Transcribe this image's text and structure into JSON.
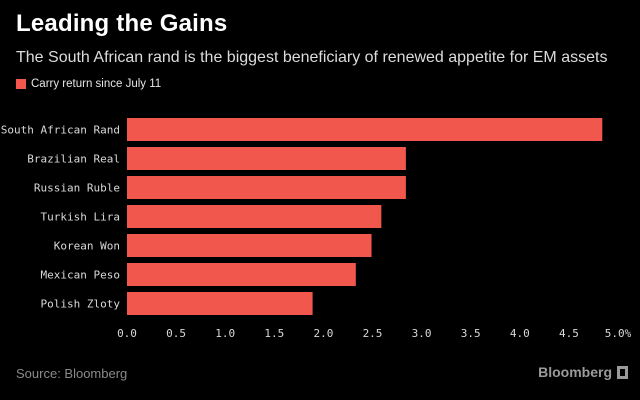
{
  "header": {
    "title": "Leading the Gains",
    "subtitle": "The South African rand is the biggest beneficiary of renewed appetite for EM assets"
  },
  "legend": {
    "label": "Carry return since July 11",
    "color": "#f2574d"
  },
  "footer": {
    "source": "Source: Bloomberg",
    "brand": "Bloomberg"
  },
  "chart_data": {
    "type": "bar",
    "orientation": "horizontal",
    "categories": [
      "South African Rand",
      "Brazilian Real",
      "Russian Ruble",
      "Turkish Lira",
      "Korean Won",
      "Mexican Peso",
      "Polish Zloty"
    ],
    "series": [
      {
        "name": "Carry return since July 11",
        "values": [
          4.84,
          2.84,
          2.84,
          2.59,
          2.49,
          2.33,
          1.89
        ],
        "color": "#f2574d"
      }
    ],
    "x_ticks": [
      "0.0",
      "0.5",
      "1.0",
      "1.5",
      "2.0",
      "2.5",
      "3.0",
      "3.5",
      "4.0",
      "4.5",
      "5.0%"
    ],
    "xlim": [
      0,
      5
    ],
    "grid": false,
    "legend_position": "top-left"
  }
}
